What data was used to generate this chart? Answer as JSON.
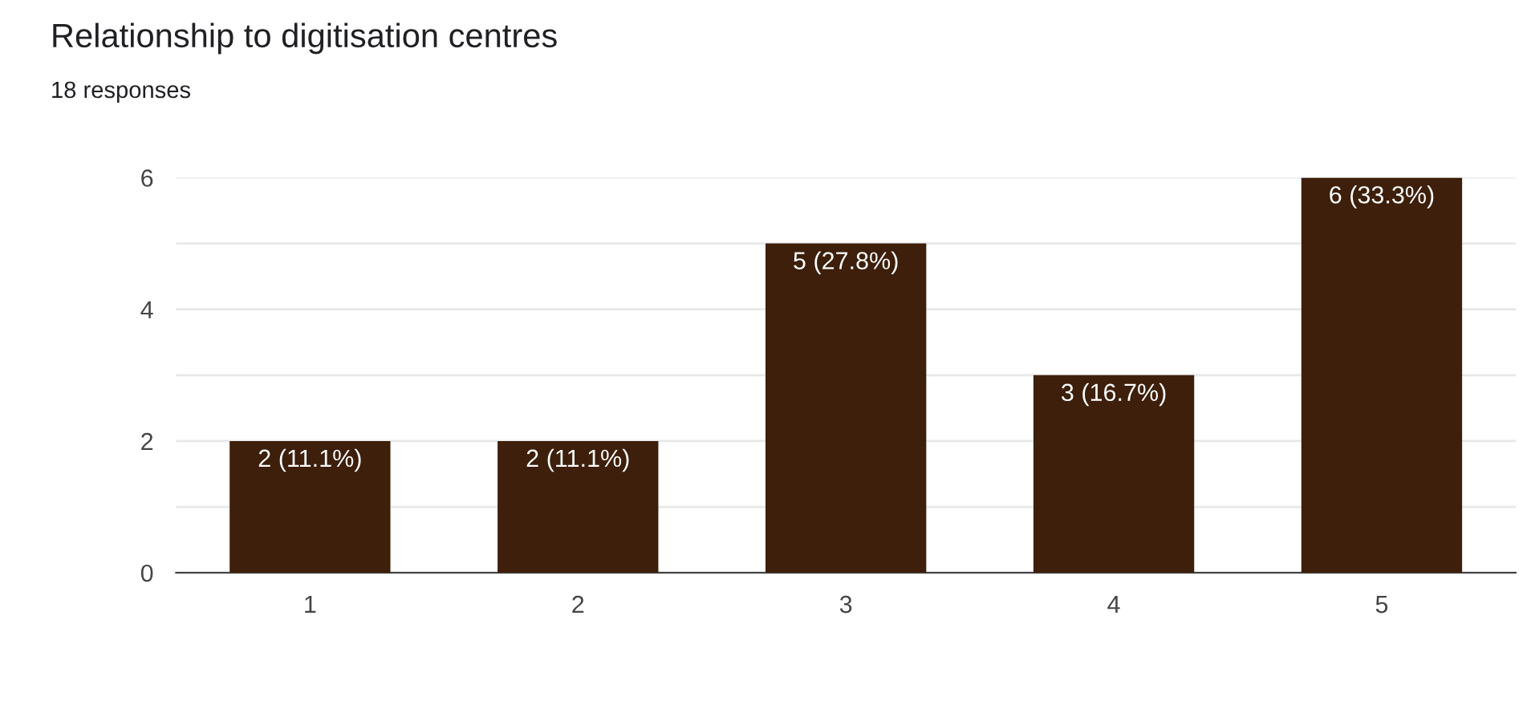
{
  "chart_data": {
    "type": "bar",
    "title": "Relationship to digitisation centres",
    "subtitle": "18 responses",
    "categories": [
      "1",
      "2",
      "3",
      "4",
      "5"
    ],
    "values": [
      2,
      2,
      5,
      3,
      6
    ],
    "value_labels": [
      "2 (11.1%)",
      "2 (11.1%)",
      "5 (27.8%)",
      "3 (16.7%)",
      "6 (33.3%)"
    ],
    "color": "#3d1f0b",
    "ylim": [
      0,
      6
    ],
    "yticks": [
      0,
      {
        "value": 1,
        "label": null
      },
      2,
      {
        "value": 3,
        "label": null
      },
      4,
      {
        "value": 5,
        "label": null
      },
      6
    ],
    "grid": "y",
    "legend": false
  }
}
